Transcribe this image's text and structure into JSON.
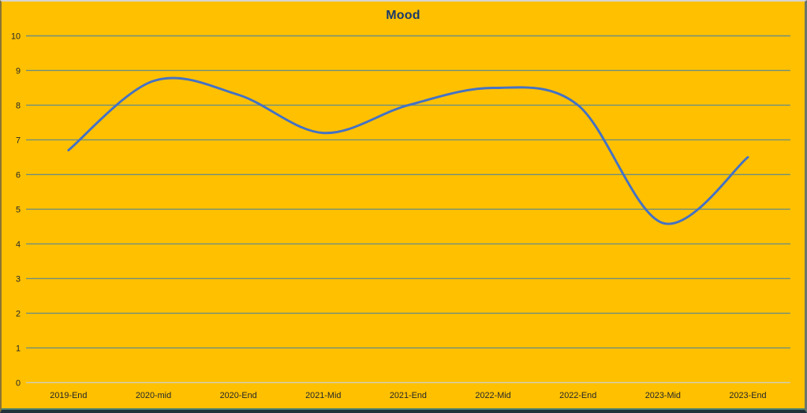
{
  "window": {
    "background_color": "#FFC000"
  },
  "chart_data": {
    "type": "line",
    "title": "Mood",
    "categories": [
      "2019-End",
      "2020-mid",
      "2020-End",
      "2021-Mid",
      "2021-End",
      "2022-Mid",
      "2022-End",
      "2023-Mid",
      "2023-End"
    ],
    "series": [
      {
        "name": "Mood",
        "values": [
          6.7,
          8.7,
          8.3,
          7.2,
          8.0,
          8.5,
          8.0,
          4.6,
          6.5
        ]
      }
    ],
    "xlabel": "",
    "ylabel": "",
    "ylim": [
      0,
      10
    ],
    "ytick_step": 1,
    "yticks": [
      0,
      1,
      2,
      3,
      4,
      5,
      6,
      7,
      8,
      9,
      10
    ],
    "grid": true,
    "legend": "none",
    "smooth": true,
    "colors": {
      "background": "#FFC000",
      "line": "#4472C4",
      "gridline": "#6E8F7E",
      "zero_axis": "#CDCFC0",
      "title": "#1B3A6B",
      "labels": "#22262B"
    }
  }
}
